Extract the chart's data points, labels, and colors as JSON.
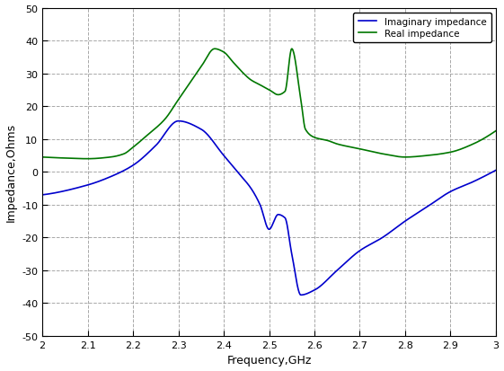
{
  "xlabel": "Frequency,GHz",
  "ylabel": "Impedance,Ohms",
  "xlim": [
    2.0,
    3.0
  ],
  "ylim": [
    -50,
    50
  ],
  "xticks": [
    2.0,
    2.1,
    2.2,
    2.3,
    2.4,
    2.5,
    2.6,
    2.7,
    2.8,
    2.9,
    3.0
  ],
  "yticks": [
    -50,
    -40,
    -30,
    -20,
    -10,
    0,
    10,
    20,
    30,
    40,
    50
  ],
  "imag_color": "#0000cc",
  "real_color": "#007700",
  "legend_labels": [
    "Imaginary impedance",
    "Real impedance"
  ],
  "background_color": "#ffffff",
  "grid_color": "#999999",
  "grid_linestyle": "--",
  "imag_keypoints_x": [
    2.0,
    2.1,
    2.15,
    2.2,
    2.25,
    2.3,
    2.35,
    2.4,
    2.43,
    2.46,
    2.48,
    2.5,
    2.52,
    2.535,
    2.55,
    2.57,
    2.6,
    2.65,
    2.7,
    2.75,
    2.8,
    2.85,
    2.9,
    2.95,
    3.0
  ],
  "imag_keypoints_y": [
    -7.0,
    -4.0,
    -1.5,
    2.0,
    8.0,
    15.5,
    13.0,
    5.0,
    0.0,
    -5.0,
    -10.0,
    -17.5,
    -13.0,
    -14.0,
    -25.0,
    -37.5,
    -36.0,
    -30.0,
    -24.0,
    -20.0,
    -15.0,
    -10.5,
    -6.0,
    -3.0,
    0.5
  ],
  "real_keypoints_x": [
    2.0,
    2.05,
    2.1,
    2.15,
    2.18,
    2.2,
    2.23,
    2.27,
    2.3,
    2.35,
    2.38,
    2.4,
    2.42,
    2.44,
    2.46,
    2.48,
    2.5,
    2.52,
    2.535,
    2.55,
    2.57,
    2.58,
    2.6,
    2.63,
    2.65,
    2.7,
    2.75,
    2.8,
    2.85,
    2.9,
    2.95,
    3.0
  ],
  "real_keypoints_y": [
    4.5,
    4.2,
    4.0,
    4.5,
    5.5,
    7.5,
    11.0,
    16.0,
    22.0,
    32.0,
    37.5,
    36.5,
    33.5,
    30.5,
    28.0,
    26.5,
    25.0,
    23.5,
    24.5,
    37.5,
    22.0,
    13.0,
    10.5,
    9.5,
    8.5,
    7.0,
    5.5,
    4.5,
    5.0,
    6.0,
    8.5,
    12.5
  ]
}
